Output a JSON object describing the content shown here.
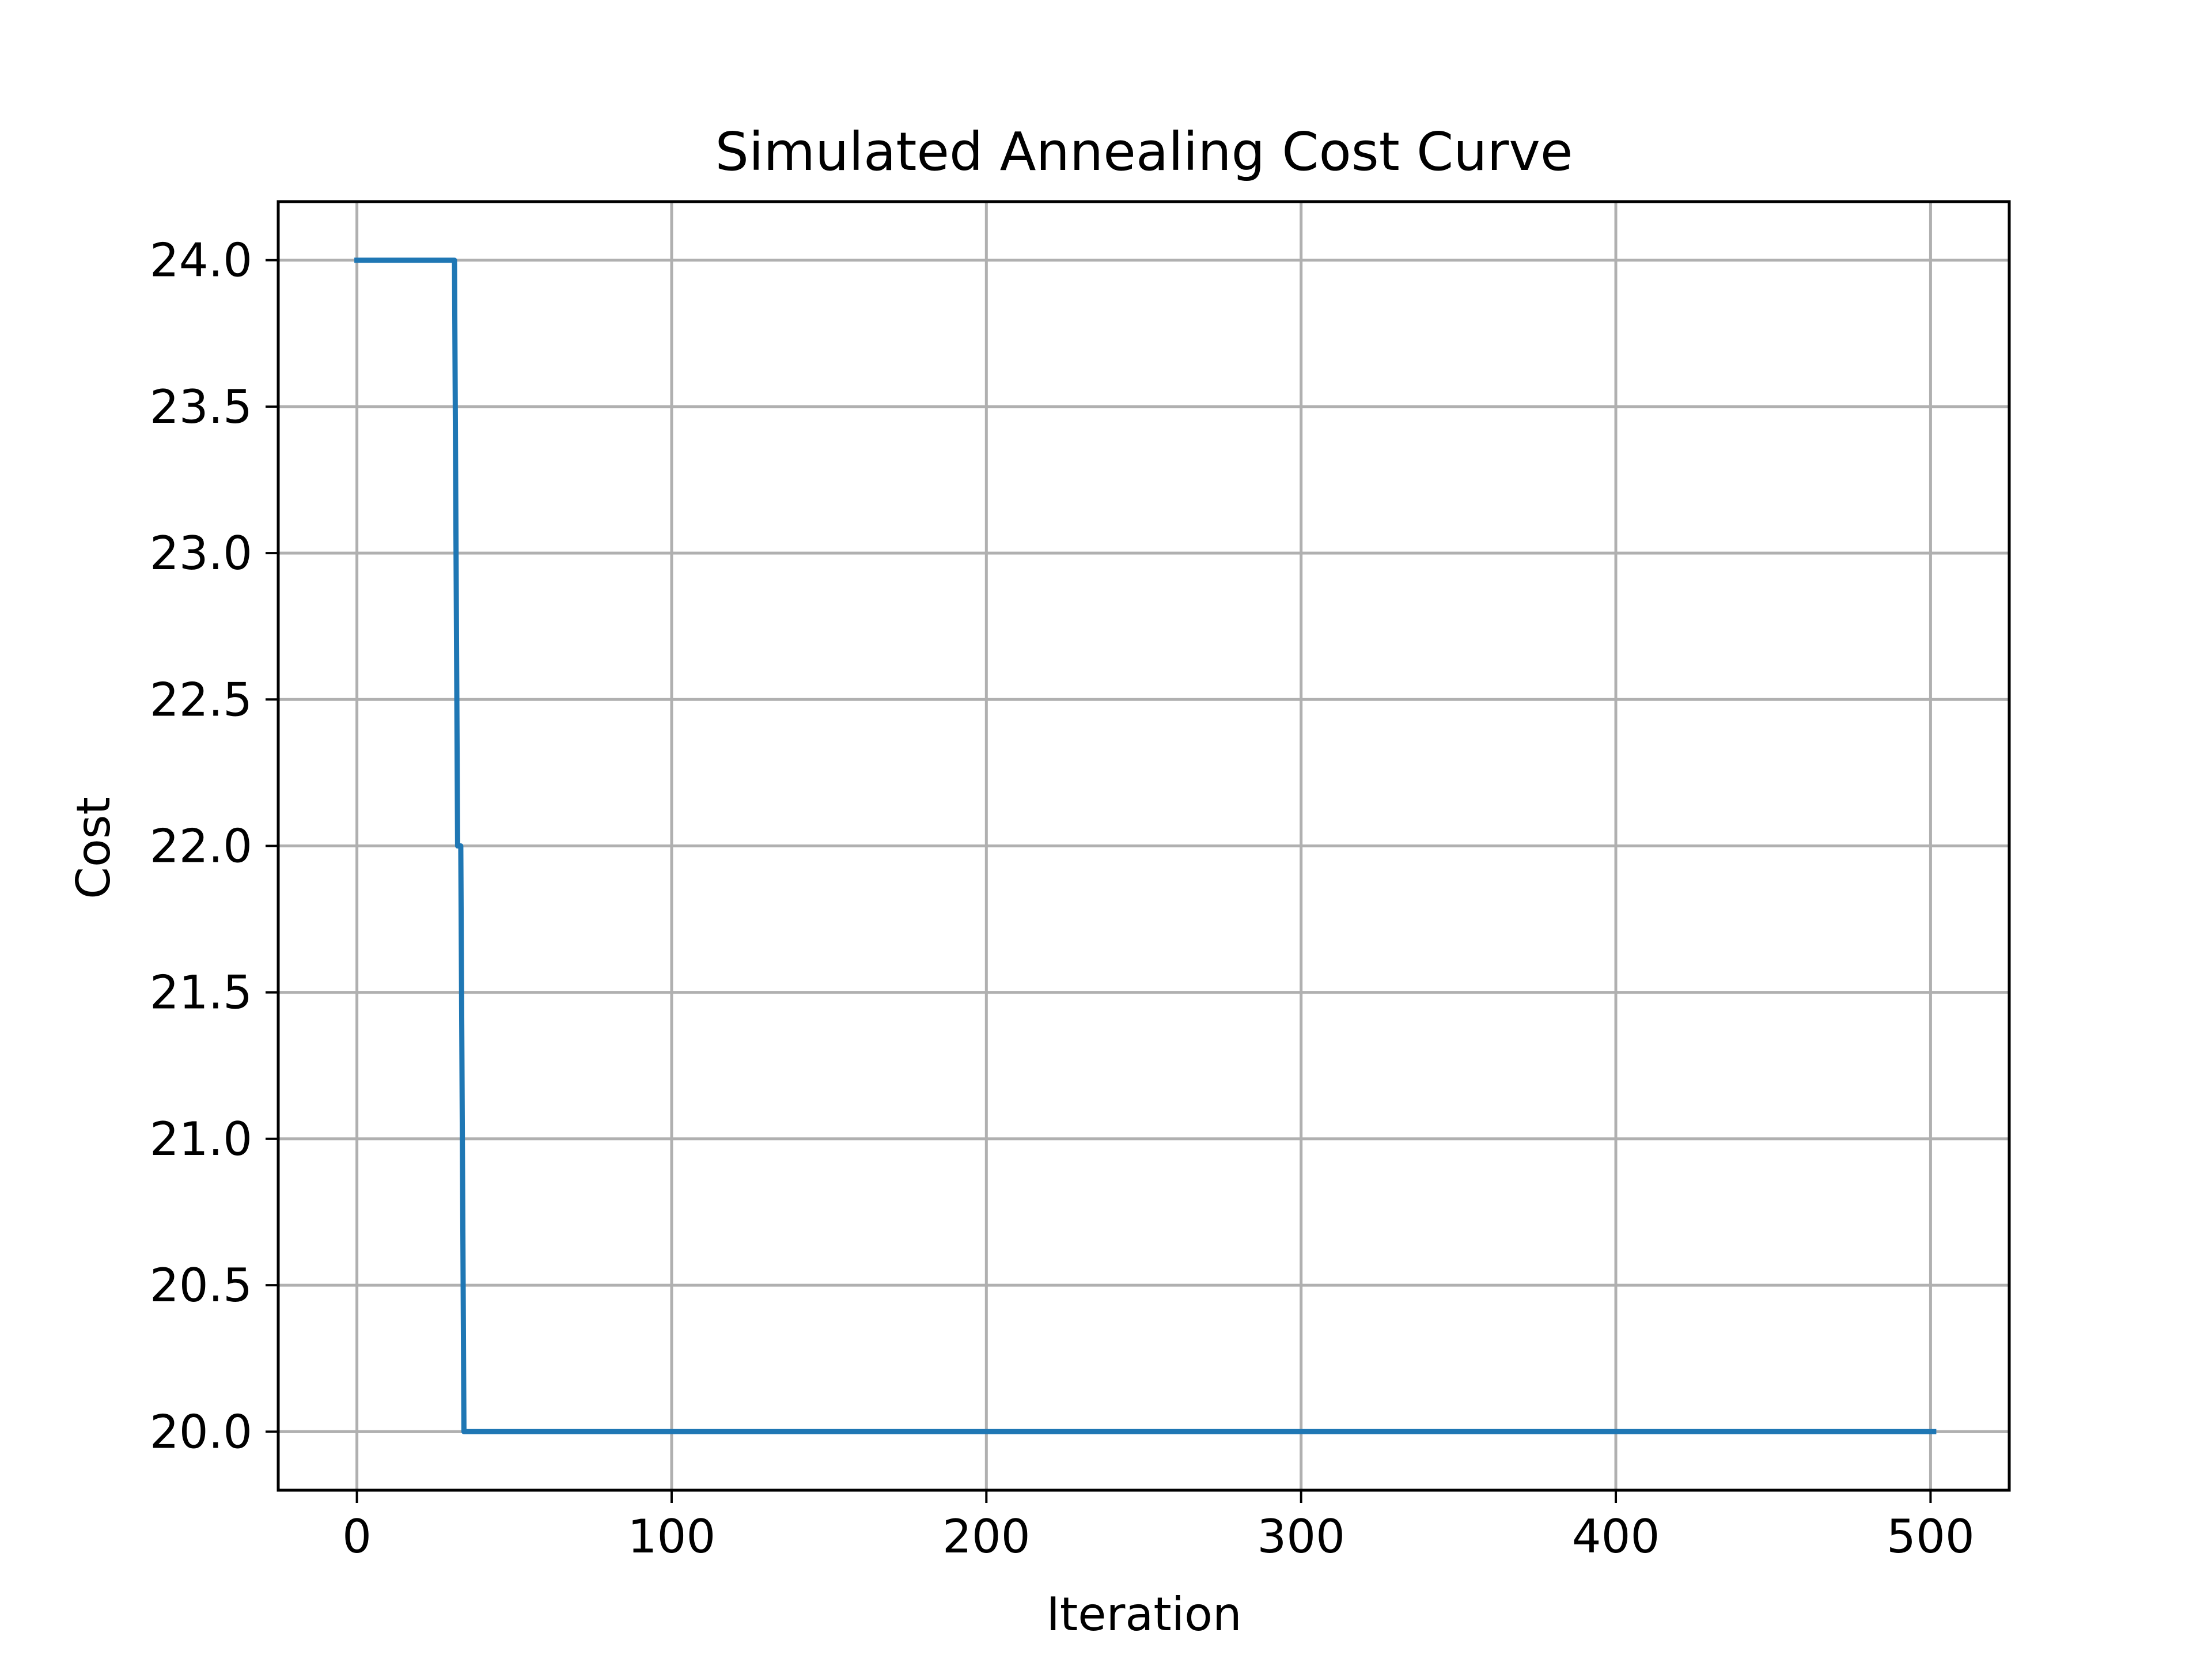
{
  "chart_data": {
    "type": "line",
    "title": "Simulated Annealing Cost Curve",
    "xlabel": "Iteration",
    "ylabel": "Cost",
    "xlim": [
      -25,
      525
    ],
    "ylim": [
      19.8,
      24.2
    ],
    "xticks": [
      0,
      100,
      200,
      300,
      400,
      500
    ],
    "xtick_labels": [
      "0",
      "100",
      "200",
      "300",
      "400",
      "500"
    ],
    "yticks": [
      20.0,
      20.5,
      21.0,
      21.5,
      22.0,
      22.5,
      23.0,
      23.5,
      24.0
    ],
    "ytick_labels": [
      "20.0",
      "20.5",
      "21.0",
      "21.5",
      "22.0",
      "22.5",
      "23.0",
      "23.5",
      "24.0"
    ],
    "grid": true,
    "series": [
      {
        "color": "#1f77b4",
        "x": [
          0,
          31,
          32,
          33,
          34,
          35,
          501
        ],
        "y": [
          24.0,
          24.0,
          22.0,
          22.0,
          20.0,
          20.0,
          20.0
        ]
      }
    ]
  }
}
